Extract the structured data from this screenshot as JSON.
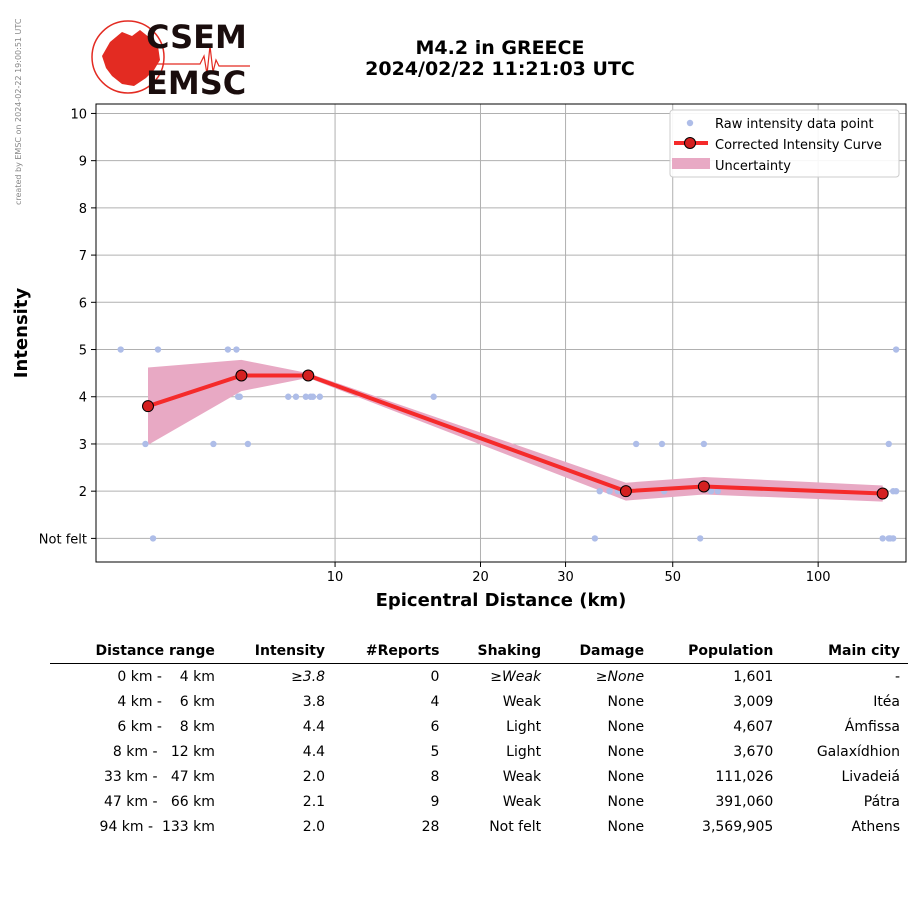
{
  "side_note": "created by EMSC on 2024-02-22 19:00:51 UTC",
  "logo": {
    "line1": "CSEM",
    "line2": "EMSC"
  },
  "title": {
    "line1": "M4.2 in GREECE",
    "line2": "2024/02/22 11:21:03 UTC"
  },
  "colors": {
    "raw": "#aebde8",
    "curve": "#f52a2a",
    "marker": "#d42020",
    "uncertainty": "#e8a9c4",
    "grid": "#b0b0b0",
    "logo_red": "#e32b22"
  },
  "chart_data": {
    "type": "line",
    "xlabel": "Epicentral Distance (km)",
    "ylabel": "Intensity",
    "xscale": "log",
    "xlim": [
      3.2,
      152
    ],
    "ylim": [
      0.5,
      10.2
    ],
    "xticks": [
      10,
      20,
      30,
      50,
      100
    ],
    "yticks": [
      1,
      2,
      3,
      4,
      5,
      6,
      7,
      8,
      9,
      10
    ],
    "ytick_labels": [
      "Not felt",
      "2",
      "3",
      "4",
      "5",
      "6",
      "7",
      "8",
      "9",
      "10"
    ],
    "grid": true,
    "legend_position": "top-right",
    "legend": [
      "Raw intensity data point",
      "Corrected Intensity Curve",
      "Uncertainty"
    ],
    "raw_points": [
      [
        3.6,
        5
      ],
      [
        4.3,
        5
      ],
      [
        4.05,
        3
      ],
      [
        4.2,
        1
      ],
      [
        5.6,
        3
      ],
      [
        6.0,
        5
      ],
      [
        6.25,
        5
      ],
      [
        6.3,
        4
      ],
      [
        6.35,
        4
      ],
      [
        6.6,
        3
      ],
      [
        8.0,
        4
      ],
      [
        8.3,
        4
      ],
      [
        8.7,
        4
      ],
      [
        8.9,
        4
      ],
      [
        9.0,
        4
      ],
      [
        9.3,
        4
      ],
      [
        16.0,
        4
      ],
      [
        34.5,
        1
      ],
      [
        35.3,
        2
      ],
      [
        37.0,
        2
      ],
      [
        38.5,
        2
      ],
      [
        42.0,
        3
      ],
      [
        47.5,
        3
      ],
      [
        48.0,
        2
      ],
      [
        58.0,
        3
      ],
      [
        60.0,
        2
      ],
      [
        62.0,
        2
      ],
      [
        57.0,
        1
      ],
      [
        136.0,
        1
      ],
      [
        140.0,
        1
      ],
      [
        141.0,
        1
      ],
      [
        143.0,
        1
      ],
      [
        140.0,
        3
      ],
      [
        143.0,
        2
      ],
      [
        145.0,
        5
      ],
      [
        145.0,
        2
      ]
    ],
    "series": [
      {
        "name": "Corrected Intensity Curve",
        "x": [
          4.1,
          6.4,
          8.8,
          40.0,
          58.0,
          136.0
        ],
        "y": [
          3.8,
          4.45,
          4.45,
          2.0,
          2.1,
          1.95
        ]
      }
    ],
    "uncertainty": {
      "x": [
        4.1,
        6.4,
        8.8,
        40.0,
        58.0,
        136.0
      ],
      "upper": [
        4.62,
        4.78,
        4.5,
        2.18,
        2.3,
        2.12
      ],
      "lower": [
        2.98,
        4.12,
        4.4,
        1.8,
        1.93,
        1.78
      ]
    }
  },
  "table": {
    "headers": [
      "Distance range",
      "Intensity",
      "#Reports",
      "Shaking",
      "Damage",
      "Population",
      "Main city"
    ],
    "rows": [
      [
        "0 km -    4 km",
        "≥3.8",
        "0",
        "≥Weak",
        "≥None",
        "1,601",
        "-"
      ],
      [
        "4 km -    6 km",
        "3.8",
        "4",
        "Weak",
        "None",
        "3,009",
        "Itéa"
      ],
      [
        "6 km -    8 km",
        "4.4",
        "6",
        "Light",
        "None",
        "4,607",
        "Ámfissa"
      ],
      [
        "8 km -   12 km",
        "4.4",
        "5",
        "Light",
        "None",
        "3,670",
        "Galaxídhion"
      ],
      [
        "33 km -   47 km",
        "2.0",
        "8",
        "Weak",
        "None",
        "111,026",
        "Livadeiá"
      ],
      [
        "47 km -   66 km",
        "2.1",
        "9",
        "Weak",
        "None",
        "391,060",
        "Pátra"
      ],
      [
        "94 km -  133 km",
        "2.0",
        "28",
        "Not felt",
        "None",
        "3,569,905",
        "Athens"
      ]
    ]
  }
}
